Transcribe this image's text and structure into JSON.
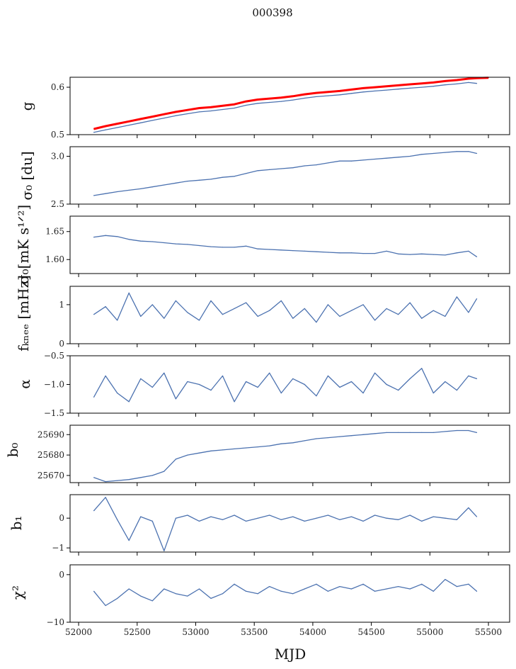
{
  "chart_data": {
    "type": "line",
    "title": "000398",
    "xlabel": "MJD",
    "xlim": [
      51927,
      55681
    ],
    "xticks": [
      52000,
      52500,
      53000,
      53500,
      54000,
      54500,
      55000,
      55500
    ],
    "x": [
      52130,
      52230,
      52330,
      52430,
      52530,
      52630,
      52730,
      52830,
      52930,
      53030,
      53130,
      53230,
      53330,
      53430,
      53530,
      53630,
      53730,
      53830,
      53930,
      54030,
      54130,
      54230,
      54330,
      54430,
      54530,
      54630,
      54730,
      54830,
      54930,
      55030,
      55130,
      55230,
      55330,
      55400
    ],
    "panels": [
      {
        "ylabel": "g",
        "ylim": [
          0.5,
          0.621
        ],
        "yticks": [
          0.5,
          0.6
        ],
        "ytick_labels": [
          "0.5",
          "0.6"
        ],
        "series": [
          {
            "name": "g",
            "color": "#4c72b0",
            "values": [
              0.505,
              0.51,
              0.515,
              0.52,
              0.525,
              0.53,
              0.535,
              0.54,
              0.544,
              0.548,
              0.55,
              0.553,
              0.556,
              0.562,
              0.566,
              0.568,
              0.57,
              0.573,
              0.577,
              0.58,
              0.582,
              0.584,
              0.587,
              0.59,
              0.592,
              0.594,
              0.596,
              0.598,
              0.6,
              0.602,
              0.605,
              0.607,
              0.61,
              0.608
            ]
          },
          {
            "name": "g model",
            "color": "#ff0000",
            "values": [
              0.512,
              0.518,
              0.523,
              0.528,
              0.533,
              0.538,
              0.543,
              0.548,
              0.552,
              0.556,
              0.558,
              0.561,
              0.564,
              0.57,
              0.574,
              0.576,
              0.578,
              0.581,
              0.585,
              0.588,
              0.59,
              0.592,
              0.595,
              0.598,
              0.6,
              0.602,
              0.604,
              0.606,
              0.608,
              0.61,
              0.613,
              0.615,
              0.618,
              0.619
            ]
          }
        ]
      },
      {
        "ylabel": "σ₀ [du]",
        "ylim": [
          2.5,
          3.1
        ],
        "yticks": [
          2.5,
          3.0
        ],
        "ytick_labels": [
          "2.5",
          "3.0"
        ],
        "series": [
          {
            "name": "sigma0_du",
            "color": "#4c72b0",
            "values": [
              2.59,
              2.61,
              2.63,
              2.645,
              2.66,
              2.68,
              2.7,
              2.72,
              2.74,
              2.75,
              2.76,
              2.78,
              2.79,
              2.82,
              2.85,
              2.86,
              2.87,
              2.88,
              2.9,
              2.91,
              2.93,
              2.95,
              2.95,
              2.96,
              2.97,
              2.98,
              2.99,
              3.0,
              3.02,
              3.03,
              3.04,
              3.05,
              3.05,
              3.03
            ]
          }
        ]
      },
      {
        "ylabel": "σ₀[mK s¹ᐟ²]",
        "ylim": [
          1.575,
          1.6775
        ],
        "yticks": [
          1.6,
          1.65
        ],
        "ytick_labels": [
          "1.60",
          "1.65"
        ],
        "series": [
          {
            "name": "sigma0_mK",
            "color": "#4c72b0",
            "values": [
              1.64,
              1.643,
              1.641,
              1.636,
              1.633,
              1.632,
              1.63,
              1.628,
              1.627,
              1.625,
              1.623,
              1.622,
              1.622,
              1.624,
              1.619,
              1.618,
              1.617,
              1.616,
              1.615,
              1.614,
              1.613,
              1.612,
              1.612,
              1.611,
              1.611,
              1.615,
              1.61,
              1.609,
              1.61,
              1.609,
              1.608,
              1.612,
              1.615,
              1.605
            ]
          }
        ]
      },
      {
        "ylabel": "fₖₙₑₑ [mHz]",
        "ylim": [
          0,
          1.47
        ],
        "yticks": [
          0,
          1
        ],
        "ytick_labels": [
          "0",
          "1"
        ],
        "series": [
          {
            "name": "fknee",
            "color": "#4c72b0",
            "values": [
              0.75,
              0.95,
              0.6,
              1.3,
              0.7,
              1.0,
              0.65,
              1.1,
              0.8,
              0.6,
              1.1,
              0.75,
              0.9,
              1.05,
              0.7,
              0.85,
              1.1,
              0.65,
              0.9,
              0.55,
              1.0,
              0.7,
              0.85,
              1.0,
              0.6,
              0.9,
              0.75,
              1.05,
              0.65,
              0.85,
              0.7,
              1.2,
              0.8,
              1.15
            ]
          }
        ]
      },
      {
        "ylabel": "α",
        "ylim": [
          -1.5,
          -0.5
        ],
        "yticks": [
          -1.5,
          -1.0,
          -0.5
        ],
        "ytick_labels": [
          "−1.5",
          "−1.0",
          "−0.5"
        ],
        "series": [
          {
            "name": "alpha",
            "color": "#4c72b0",
            "values": [
              -1.22,
              -0.85,
              -1.15,
              -1.3,
              -0.9,
              -1.05,
              -0.8,
              -1.25,
              -0.95,
              -1.0,
              -1.1,
              -0.85,
              -1.3,
              -0.95,
              -1.05,
              -0.8,
              -1.15,
              -0.9,
              -1.0,
              -1.2,
              -0.85,
              -1.05,
              -0.95,
              -1.15,
              -0.8,
              -1.0,
              -1.1,
              -0.9,
              -0.72,
              -1.15,
              -0.95,
              -1.1,
              -0.85,
              -0.9
            ]
          }
        ]
      },
      {
        "ylabel": "b₀",
        "ylim": [
          25666.5,
          25694.6
        ],
        "yticks": [
          25670,
          25680,
          25690
        ],
        "ytick_labels": [
          "25670",
          "25680",
          "25690"
        ],
        "series": [
          {
            "name": "b0",
            "color": "#4c72b0",
            "values": [
              25669,
              25667,
              25667.5,
              25668,
              25669,
              25670,
              25672,
              25678,
              25680,
              25681,
              25682,
              25682.5,
              25683,
              25683.5,
              25684,
              25684.5,
              25685.5,
              25686,
              25687,
              25688,
              25688.5,
              25689,
              25689.5,
              25690,
              25690.5,
              25691,
              25691,
              25691,
              25691,
              25691,
              25691.5,
              25692,
              25692,
              25691
            ]
          }
        ]
      },
      {
        "ylabel": "b₁",
        "ylim": [
          -1.14,
          0.79
        ],
        "yticks": [
          -1,
          0
        ],
        "ytick_labels": [
          "−1",
          "0"
        ],
        "series": [
          {
            "name": "b1",
            "color": "#4c72b0",
            "values": [
              0.25,
              0.7,
              -0.05,
              -0.75,
              0.05,
              -0.1,
              -1.1,
              0.0,
              0.1,
              -0.1,
              0.05,
              -0.05,
              0.1,
              -0.1,
              0.0,
              0.1,
              -0.05,
              0.05,
              -0.1,
              0.0,
              0.1,
              -0.05,
              0.05,
              -0.1,
              0.1,
              0.0,
              -0.05,
              0.1,
              -0.1,
              0.05,
              0.0,
              -0.05,
              0.35,
              0.05
            ]
          }
        ]
      },
      {
        "ylabel": "χ²",
        "ylim": [
          -10,
          2.06
        ],
        "yticks": [
          -10,
          0
        ],
        "ytick_labels": [
          "−10",
          "0"
        ],
        "series": [
          {
            "name": "chi2",
            "color": "#4c72b0",
            "values": [
              -3.5,
              -6.5,
              -5,
              -3,
              -4.5,
              -5.5,
              -3,
              -4,
              -4.5,
              -3,
              -5,
              -4,
              -2,
              -3.5,
              -4,
              -2.5,
              -3.5,
              -4,
              -3,
              -2,
              -3.5,
              -2.5,
              -3,
              -2,
              -3.5,
              -3,
              -2.5,
              -3,
              -2,
              -3.5,
              -1,
              -2.5,
              -2,
              -3.5
            ]
          }
        ]
      }
    ]
  }
}
